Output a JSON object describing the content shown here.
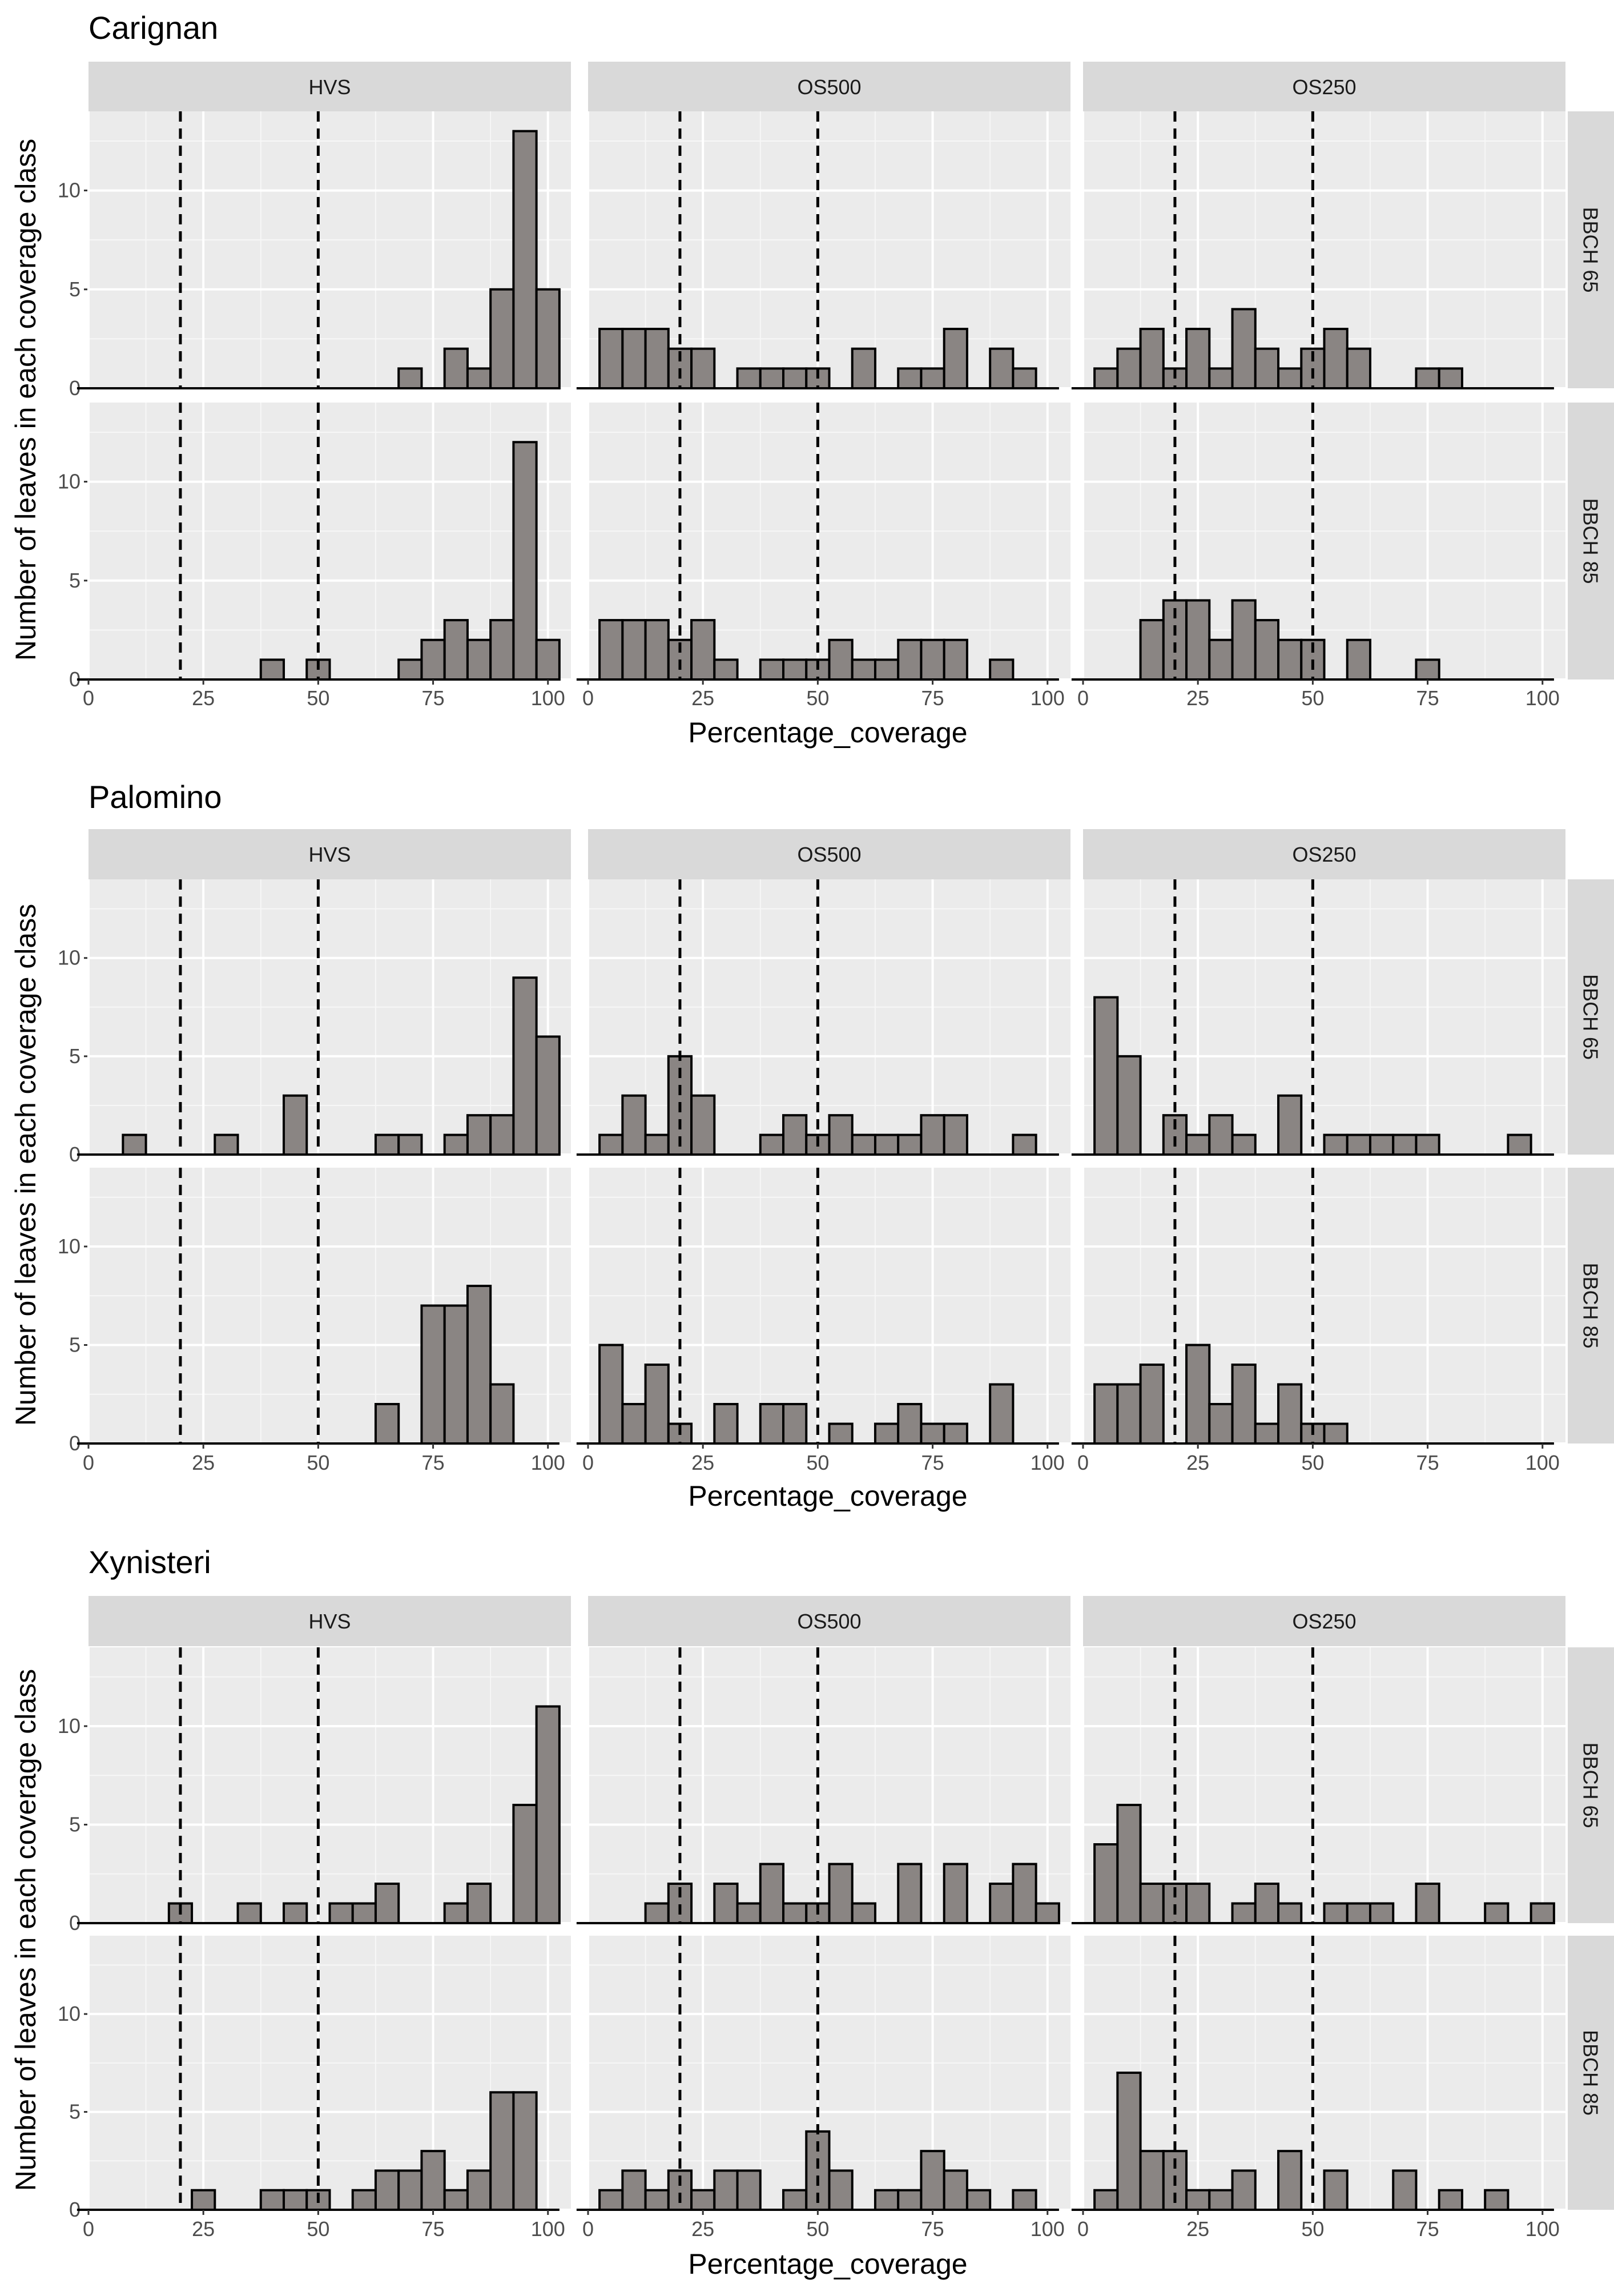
{
  "chart_data": {
    "type": "bar",
    "title": "",
    "xlabel": "Percentage_coverage",
    "ylabel": "Number of leaves in each coverage class",
    "xlim": [
      0,
      105
    ],
    "ylim": [
      0,
      14
    ],
    "x_ticks": [
      0,
      25,
      50,
      75,
      100
    ],
    "y_ticks": [
      0,
      5,
      10
    ],
    "reference_lines": [
      20,
      50
    ],
    "bin_width": 5,
    "columns": [
      "HVS",
      "OS500",
      "OS250"
    ],
    "rows": [
      "BBCH 65",
      "BBCH 85"
    ],
    "blocks": [
      {
        "title": "Carignan",
        "panels": [
          [
            {
              "bins": [
                70,
                75,
                80,
                85,
                90,
                95,
                100
              ],
              "counts": [
                1,
                0,
                2,
                1,
                5,
                13,
                5
              ]
            },
            {
              "bins": [
                5,
                10,
                15,
                20,
                25,
                35,
                40,
                45,
                50,
                60,
                70,
                75,
                80,
                90,
                95
              ],
              "counts": [
                3,
                3,
                3,
                2,
                2,
                1,
                1,
                1,
                1,
                2,
                1,
                1,
                3,
                2,
                1
              ]
            },
            {
              "bins": [
                5,
                10,
                15,
                20,
                25,
                30,
                35,
                40,
                45,
                50,
                55,
                60,
                75,
                80
              ],
              "counts": [
                1,
                2,
                3,
                1,
                3,
                1,
                4,
                2,
                1,
                2,
                3,
                2,
                1,
                1
              ]
            }
          ],
          [
            {
              "bins": [
                40,
                50,
                70,
                75,
                80,
                85,
                90,
                95,
                100
              ],
              "counts": [
                1,
                1,
                1,
                2,
                3,
                2,
                3,
                12,
                2
              ]
            },
            {
              "bins": [
                5,
                10,
                15,
                20,
                25,
                30,
                40,
                45,
                50,
                55,
                60,
                65,
                70,
                75,
                80,
                90
              ],
              "counts": [
                3,
                3,
                3,
                2,
                3,
                1,
                1,
                1,
                1,
                2,
                1,
                1,
                2,
                2,
                2,
                1
              ]
            },
            {
              "bins": [
                15,
                20,
                25,
                30,
                35,
                40,
                45,
                50,
                60,
                75
              ],
              "counts": [
                3,
                4,
                4,
                2,
                4,
                3,
                2,
                2,
                2,
                1
              ]
            }
          ]
        ]
      },
      {
        "title": "Palomino",
        "panels": [
          [
            {
              "bins": [
                10,
                30,
                45,
                65,
                70,
                80,
                85,
                90,
                95,
                100
              ],
              "counts": [
                1,
                1,
                3,
                1,
                1,
                1,
                2,
                2,
                9,
                6
              ]
            },
            {
              "bins": [
                5,
                10,
                15,
                20,
                25,
                40,
                45,
                50,
                55,
                60,
                65,
                70,
                75,
                80,
                95
              ],
              "counts": [
                1,
                3,
                1,
                5,
                3,
                1,
                2,
                1,
                2,
                1,
                1,
                1,
                2,
                2,
                1
              ]
            },
            {
              "bins": [
                5,
                10,
                20,
                25,
                30,
                35,
                45,
                55,
                60,
                65,
                70,
                75,
                95
              ],
              "counts": [
                8,
                5,
                2,
                1,
                2,
                1,
                3,
                1,
                1,
                1,
                1,
                1,
                1
              ]
            }
          ],
          [
            {
              "bins": [
                65,
                75,
                80,
                85,
                90
              ],
              "counts": [
                2,
                7,
                7,
                8,
                3
              ]
            },
            {
              "bins": [
                5,
                10,
                15,
                20,
                30,
                40,
                45,
                50,
                55,
                65,
                70,
                75,
                80,
                90
              ],
              "counts": [
                5,
                2,
                4,
                1,
                2,
                2,
                2,
                0,
                1,
                1,
                2,
                1,
                1,
                3
              ]
            },
            {
              "bins": [
                5,
                10,
                15,
                25,
                30,
                35,
                40,
                45,
                50,
                55
              ],
              "counts": [
                3,
                3,
                4,
                5,
                2,
                4,
                1,
                3,
                1,
                1
              ]
            }
          ]
        ]
      },
      {
        "title": "Xynisteri",
        "panels": [
          [
            {
              "bins": [
                20,
                35,
                45,
                55,
                60,
                65,
                80,
                85,
                95,
                100
              ],
              "counts": [
                1,
                1,
                1,
                1,
                1,
                2,
                1,
                2,
                6,
                11
              ]
            },
            {
              "bins": [
                15,
                20,
                30,
                35,
                40,
                45,
                50,
                55,
                60,
                70,
                80,
                90,
                95,
                100
              ],
              "counts": [
                1,
                2,
                2,
                1,
                3,
                1,
                1,
                3,
                1,
                3,
                3,
                2,
                3,
                1
              ]
            },
            {
              "bins": [
                5,
                10,
                15,
                20,
                25,
                35,
                40,
                45,
                55,
                60,
                65,
                75,
                90,
                100
              ],
              "counts": [
                4,
                6,
                2,
                2,
                2,
                1,
                2,
                1,
                1,
                1,
                1,
                2,
                1,
                1
              ]
            }
          ],
          [
            {
              "bins": [
                25,
                40,
                45,
                50,
                60,
                65,
                70,
                75,
                80,
                85,
                90,
                95
              ],
              "counts": [
                1,
                1,
                1,
                1,
                1,
                2,
                2,
                3,
                1,
                2,
                6,
                6
              ]
            },
            {
              "bins": [
                5,
                10,
                15,
                20,
                25,
                30,
                35,
                45,
                50,
                55,
                65,
                70,
                75,
                80,
                85,
                95
              ],
              "counts": [
                1,
                2,
                1,
                2,
                1,
                2,
                2,
                1,
                4,
                2,
                1,
                1,
                3,
                2,
                1,
                1
              ]
            },
            {
              "bins": [
                5,
                10,
                15,
                20,
                25,
                30,
                35,
                45,
                55,
                70,
                80,
                90
              ],
              "counts": [
                1,
                7,
                3,
                3,
                1,
                1,
                2,
                3,
                2,
                2,
                1,
                1
              ]
            }
          ]
        ]
      }
    ]
  }
}
